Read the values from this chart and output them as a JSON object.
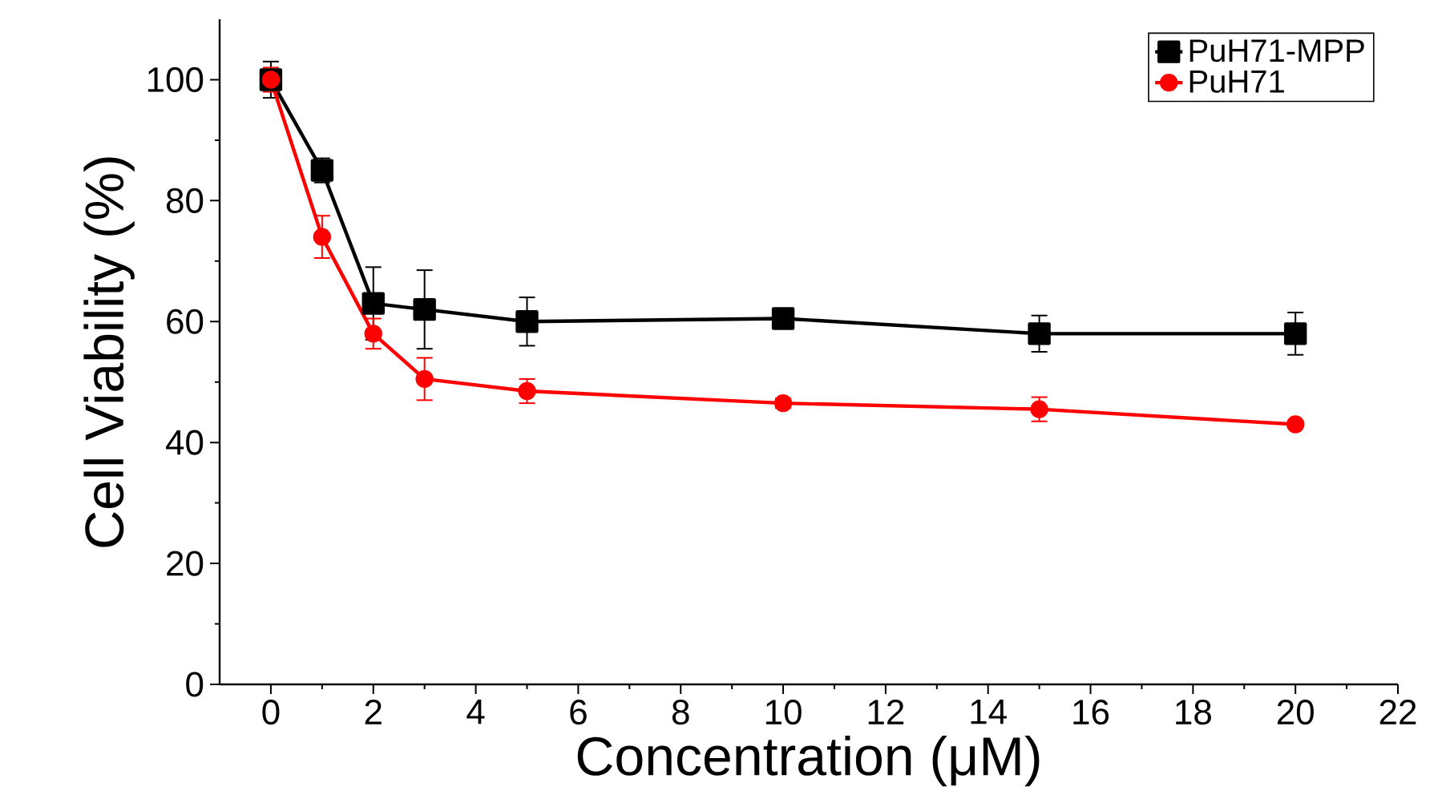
{
  "chart_data": {
    "type": "line",
    "xlabel": "Concentration (μM)",
    "ylabel": "Cell Viability (%)",
    "x": [
      0,
      1,
      2,
      3,
      5,
      10,
      15,
      20
    ],
    "series": [
      {
        "name": "PuH71-MPP",
        "color": "#000000",
        "marker": "square",
        "values": [
          100,
          85,
          63,
          62,
          60,
          60.5,
          58,
          58
        ],
        "errors": [
          3,
          2,
          6,
          6.5,
          4,
          1.5,
          3,
          3.5
        ]
      },
      {
        "name": "PuH71",
        "color": "#ff0000",
        "marker": "circle",
        "values": [
          100,
          74,
          58,
          50.5,
          48.5,
          46.5,
          45.5,
          43
        ],
        "errors": [
          2,
          3.5,
          2.5,
          3.5,
          2,
          0.8,
          2,
          null
        ]
      }
    ],
    "xlim": [
      -1,
      22
    ],
    "ylim": [
      0,
      110
    ],
    "xticks": [
      0,
      2,
      4,
      6,
      8,
      10,
      12,
      14,
      16,
      18,
      20,
      22
    ],
    "yticks": [
      0,
      20,
      40,
      60,
      80,
      100
    ],
    "grid": false,
    "legend": "top right",
    "line_style": "solid"
  }
}
